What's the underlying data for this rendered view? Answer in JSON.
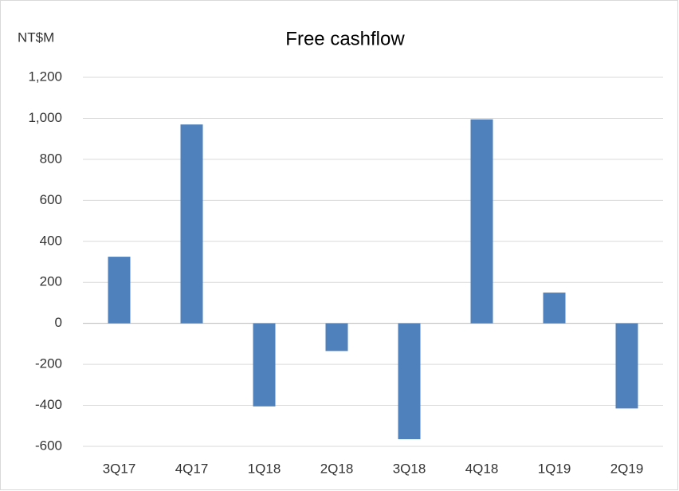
{
  "chart_data": {
    "type": "bar",
    "title": "Free cashflow",
    "y_label": "NT$M",
    "categories": [
      "3Q17",
      "4Q17",
      "1Q18",
      "2Q18",
      "3Q18",
      "4Q18",
      "1Q19",
      "2Q19"
    ],
    "values": [
      325,
      970,
      -405,
      -135,
      -565,
      995,
      150,
      -415
    ],
    "color": "#4f81bd",
    "ylim": [
      -600,
      1200
    ],
    "yticks": [
      -600,
      -400,
      -200,
      0,
      200,
      400,
      600,
      800,
      {
        "value": 1000,
        "label": "1,000"
      },
      {
        "value": 1200,
        "label": "1,200"
      }
    ],
    "grid": true
  }
}
